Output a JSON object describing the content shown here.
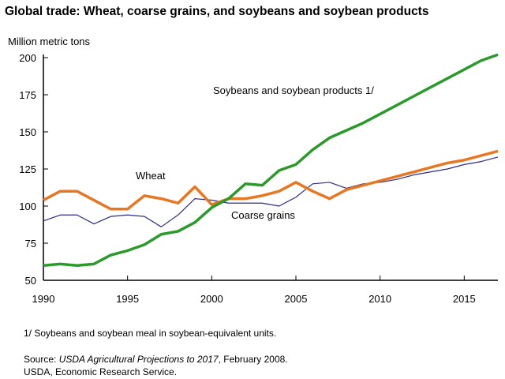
{
  "chart_data": {
    "type": "line",
    "title": "Global trade: Wheat, coarse grains, and soybeans and soybean products",
    "ylabel": "Million metric tons",
    "xlabel": "",
    "xlim": [
      1990,
      2017
    ],
    "ylim": [
      50,
      200
    ],
    "xticks": [
      1990,
      1995,
      2000,
      2005,
      2010,
      2015
    ],
    "yticks": [
      50,
      75,
      100,
      125,
      150,
      175,
      200
    ],
    "grid": false,
    "x": [
      1990,
      1991,
      1992,
      1993,
      1994,
      1995,
      1996,
      1997,
      1998,
      1999,
      2000,
      2001,
      2002,
      2003,
      2004,
      2005,
      2006,
      2007,
      2008,
      2009,
      2010,
      2011,
      2012,
      2013,
      2014,
      2015,
      2016,
      2017
    ],
    "series": [
      {
        "name": "Wheat",
        "color": "#e87722",
        "values": [
          104,
          110,
          110,
          104,
          98,
          98,
          107,
          105,
          102,
          113,
          101,
          105,
          105,
          107,
          110,
          116,
          110,
          105,
          111,
          114,
          117,
          120,
          123,
          126,
          129,
          131,
          134,
          137
        ]
      },
      {
        "name": "Coarse grains",
        "color": "#2b2b8c",
        "values": [
          90,
          94,
          94,
          88,
          93,
          94,
          93,
          86,
          94,
          105,
          104,
          102,
          102,
          102,
          100,
          106,
          115,
          116,
          112,
          115,
          116,
          118,
          121,
          123,
          125,
          128,
          130,
          133
        ]
      },
      {
        "name": "Soybeans and soybean products 1/",
        "color": "#2a9a2a",
        "values": [
          60,
          61,
          60,
          61,
          67,
          70,
          74,
          81,
          83,
          89,
          99,
          105,
          115,
          114,
          124,
          128,
          138,
          146,
          151,
          156,
          162,
          168,
          174,
          180,
          186,
          192,
          198,
          202
        ]
      }
    ]
  },
  "footnote": "1/ Soybeans and soybean meal in soybean-equivalent units.",
  "source_prefix": "Source: ",
  "source_title": "USDA Agricultural Projections to 2017",
  "source_suffix": ", February 2008.",
  "source_line2": "USDA, Economic Research Service."
}
